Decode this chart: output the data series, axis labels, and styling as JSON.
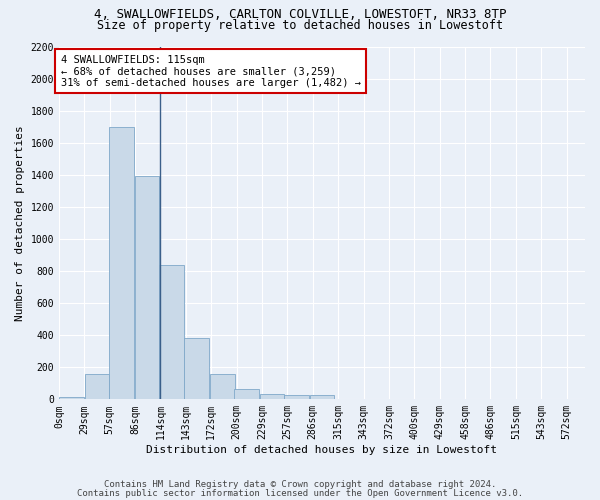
{
  "title_line1": "4, SWALLOWFIELDS, CARLTON COLVILLE, LOWESTOFT, NR33 8TP",
  "title_line2": "Size of property relative to detached houses in Lowestoft",
  "xlabel": "Distribution of detached houses by size in Lowestoft",
  "ylabel": "Number of detached properties",
  "bar_left_edges": [
    0,
    29,
    57,
    86,
    114,
    143,
    172,
    200,
    229,
    257,
    286,
    315,
    343,
    372,
    400,
    429,
    458,
    486,
    515,
    543
  ],
  "bar_heights": [
    15,
    155,
    1700,
    1390,
    835,
    380,
    160,
    65,
    35,
    30,
    30,
    0,
    0,
    0,
    0,
    0,
    0,
    0,
    0,
    0
  ],
  "bin_width": 29,
  "bar_color": "#c9d9e8",
  "bar_edge_color": "#7fa8c9",
  "ylim": [
    0,
    2200
  ],
  "yticks": [
    0,
    200,
    400,
    600,
    800,
    1000,
    1200,
    1400,
    1600,
    1800,
    2000,
    2200
  ],
  "xtick_labels": [
    "0sqm",
    "29sqm",
    "57sqm",
    "86sqm",
    "114sqm",
    "143sqm",
    "172sqm",
    "200sqm",
    "229sqm",
    "257sqm",
    "286sqm",
    "315sqm",
    "343sqm",
    "372sqm",
    "400sqm",
    "429sqm",
    "458sqm",
    "486sqm",
    "515sqm",
    "543sqm",
    "572sqm"
  ],
  "property_size": 115,
  "vline_color": "#3a5f8a",
  "annotation_text": "4 SWALLOWFIELDS: 115sqm\n← 68% of detached houses are smaller (3,259)\n31% of semi-detached houses are larger (1,482) →",
  "annotation_box_color": "#ffffff",
  "annotation_border_color": "#cc0000",
  "footer_line1": "Contains HM Land Registry data © Crown copyright and database right 2024.",
  "footer_line2": "Contains public sector information licensed under the Open Government Licence v3.0.",
  "background_color": "#eaf0f8",
  "plot_bg_color": "#eaf0f8",
  "grid_color": "#ffffff",
  "title_fontsize": 9,
  "subtitle_fontsize": 8.5,
  "tick_fontsize": 7,
  "ylabel_fontsize": 8,
  "xlabel_fontsize": 8,
  "annotation_fontsize": 7.5,
  "footer_fontsize": 6.5
}
